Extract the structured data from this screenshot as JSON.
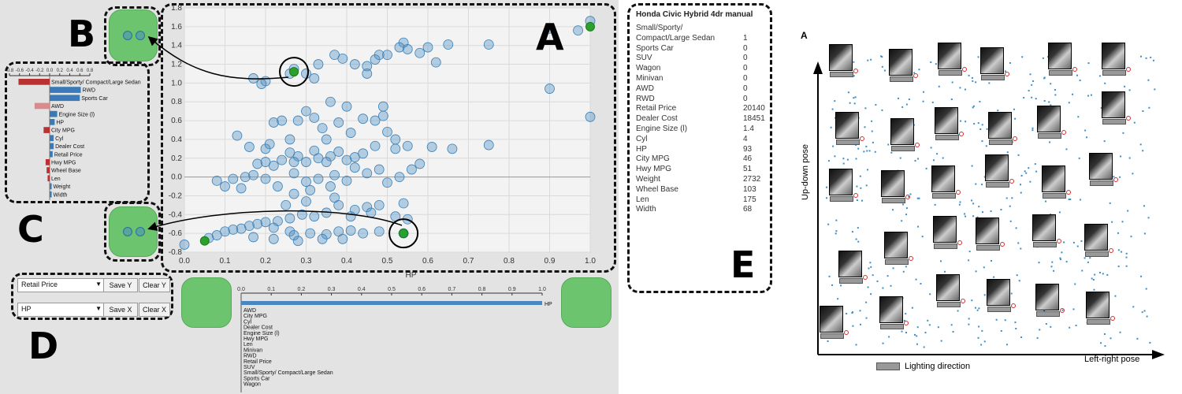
{
  "labels": {
    "a": "A",
    "b": "B",
    "c": "C",
    "d": "D",
    "e": "E"
  },
  "scatter": {
    "xlabel": "HP",
    "x_ticks": [
      "0.0",
      "0.1",
      "0.2",
      "0.3",
      "0.4",
      "0.5",
      "0.6",
      "0.7",
      "0.8",
      "0.9",
      "1.0"
    ],
    "y_ticks": [
      "1.8",
      "1.6",
      "1.4",
      "1.2",
      "1.0",
      "0.8",
      "0.6",
      "0.4",
      "0.2",
      "0.0",
      "-0.2",
      "-0.4",
      "-0.6",
      "-0.8"
    ],
    "colors": {
      "point": "#4a8ec4",
      "highlight": "#2ca02c"
    }
  },
  "chart_data": [
    {
      "type": "scatter",
      "xlabel": "HP",
      "ylabel": "",
      "xlim": [
        0.0,
        1.0
      ],
      "ylim": [
        -0.8,
        1.8
      ],
      "points": [
        [
          1.0,
          1.66
        ],
        [
          0.97,
          1.56
        ],
        [
          0.9,
          1.58
        ],
        [
          0.75,
          1.41
        ],
        [
          0.65,
          1.41
        ],
        [
          0.6,
          1.38
        ],
        [
          0.58,
          1.32
        ],
        [
          0.55,
          1.36
        ],
        [
          0.54,
          1.43
        ],
        [
          0.53,
          1.38
        ],
        [
          0.5,
          1.3
        ],
        [
          0.47,
          1.25
        ],
        [
          0.45,
          1.18
        ],
        [
          0.42,
          1.2
        ],
        [
          0.39,
          1.26
        ],
        [
          0.37,
          1.3
        ],
        [
          0.33,
          1.2
        ],
        [
          0.3,
          1.1
        ],
        [
          0.26,
          1.1
        ],
        [
          0.2,
          1.02
        ],
        [
          0.19,
          0.99
        ],
        [
          0.17,
          1.05
        ],
        [
          0.27,
          1.15
        ],
        [
          0.32,
          1.05
        ],
        [
          0.45,
          1.1
        ],
        [
          0.48,
          1.3
        ],
        [
          0.62,
          1.22
        ],
        [
          0.9,
          0.94
        ],
        [
          1.0,
          0.64
        ],
        [
          0.75,
          0.34
        ],
        [
          0.66,
          0.3
        ],
        [
          0.61,
          0.32
        ],
        [
          0.55,
          0.33
        ],
        [
          0.52,
          0.4
        ],
        [
          0.5,
          0.48
        ],
        [
          0.49,
          0.75
        ],
        [
          0.49,
          0.65
        ],
        [
          0.47,
          0.6
        ],
        [
          0.44,
          0.62
        ],
        [
          0.41,
          0.47
        ],
        [
          0.38,
          0.58
        ],
        [
          0.34,
          0.52
        ],
        [
          0.35,
          0.4
        ],
        [
          0.3,
          0.7
        ],
        [
          0.28,
          0.6
        ],
        [
          0.24,
          0.6
        ],
        [
          0.22,
          0.58
        ],
        [
          0.32,
          0.63
        ],
        [
          0.4,
          0.75
        ],
        [
          0.36,
          0.8
        ],
        [
          0.26,
          0.4
        ],
        [
          0.21,
          0.35
        ],
        [
          0.2,
          0.3
        ],
        [
          0.16,
          0.32
        ],
        [
          0.13,
          0.44
        ],
        [
          0.52,
          0.3
        ],
        [
          0.47,
          0.33
        ],
        [
          0.44,
          0.25
        ],
        [
          0.42,
          0.21
        ],
        [
          0.4,
          0.18
        ],
        [
          0.38,
          0.27
        ],
        [
          0.36,
          0.22
        ],
        [
          0.35,
          0.16
        ],
        [
          0.33,
          0.2
        ],
        [
          0.32,
          0.28
        ],
        [
          0.3,
          0.16
        ],
        [
          0.28,
          0.22
        ],
        [
          0.27,
          0.16
        ],
        [
          0.26,
          0.26
        ],
        [
          0.24,
          0.18
        ],
        [
          0.22,
          0.12
        ],
        [
          0.2,
          0.16
        ],
        [
          0.18,
          0.14
        ],
        [
          0.17,
          0.02
        ],
        [
          0.15,
          0.0
        ],
        [
          0.12,
          -0.02
        ],
        [
          0.08,
          -0.04
        ],
        [
          0.1,
          -0.1
        ],
        [
          0.14,
          -0.12
        ],
        [
          0.2,
          -0.02
        ],
        [
          0.23,
          -0.1
        ],
        [
          0.27,
          0.04
        ],
        [
          0.3,
          -0.05
        ],
        [
          0.33,
          -0.02
        ],
        [
          0.37,
          0.02
        ],
        [
          0.4,
          -0.04
        ],
        [
          0.42,
          0.1
        ],
        [
          0.45,
          0.04
        ],
        [
          0.48,
          0.08
        ],
        [
          0.5,
          -0.06
        ],
        [
          0.53,
          0.0
        ],
        [
          0.56,
          0.08
        ],
        [
          0.58,
          0.14
        ],
        [
          0.36,
          -0.1
        ],
        [
          0.31,
          -0.14
        ],
        [
          0.27,
          -0.18
        ],
        [
          0.3,
          -0.26
        ],
        [
          0.37,
          -0.22
        ],
        [
          0.25,
          -0.3
        ],
        [
          0.38,
          -0.3
        ],
        [
          0.42,
          -0.35
        ],
        [
          0.45,
          -0.32
        ],
        [
          0.48,
          -0.3
        ],
        [
          0.54,
          -0.28
        ],
        [
          0.35,
          -0.38
        ],
        [
          0.32,
          -0.42
        ],
        [
          0.29,
          -0.4
        ],
        [
          0.26,
          -0.44
        ],
        [
          0.23,
          -0.47
        ],
        [
          0.2,
          -0.48
        ],
        [
          0.18,
          -0.5
        ],
        [
          0.16,
          -0.52
        ],
        [
          0.14,
          -0.55
        ],
        [
          0.12,
          -0.56
        ],
        [
          0.1,
          -0.58
        ],
        [
          0.08,
          -0.62
        ],
        [
          0.06,
          -0.65
        ],
        [
          0.0,
          -0.72
        ],
        [
          0.22,
          -0.54
        ],
        [
          0.26,
          -0.58
        ],
        [
          0.31,
          -0.6
        ],
        [
          0.35,
          -0.61
        ],
        [
          0.38,
          -0.58
        ],
        [
          0.41,
          -0.57
        ],
        [
          0.44,
          -0.6
        ],
        [
          0.48,
          -0.58
        ],
        [
          0.28,
          -0.68
        ],
        [
          0.22,
          -0.66
        ],
        [
          0.17,
          -0.64
        ],
        [
          0.34,
          -0.66
        ],
        [
          0.39,
          -0.66
        ],
        [
          0.41,
          -0.42
        ],
        [
          0.46,
          -0.38
        ],
        [
          0.52,
          -0.42
        ],
        [
          0.55,
          -0.45
        ],
        [
          0.54,
          -0.6
        ],
        [
          0.27,
          -0.62
        ]
      ],
      "highlight": [
        [
          1.0,
          1.6
        ],
        [
          0.27,
          1.12
        ],
        [
          0.54,
          -0.6
        ],
        [
          0.05,
          -0.68
        ]
      ]
    },
    {
      "type": "bar",
      "title": "",
      "ticks": [
        "0.0",
        "0.1",
        "0.2",
        "0.3",
        "0.4",
        "0.5",
        "0.6",
        "0.7",
        "0.8",
        "0.9",
        "1.0"
      ],
      "xlim": [
        0.0,
        1.0
      ],
      "categories": [
        "HP",
        "AWD",
        "City MPG",
        "Cyl",
        "Dealer Cost",
        "Engine Size (l)",
        "Hwy MPG",
        "Len",
        "Minivan",
        "RWD",
        "Retail Price",
        "SUV",
        "Small/Sporty/ Compact/Large Sedan",
        "Sports Car",
        "Wagon"
      ],
      "values": [
        1.0,
        0,
        0,
        0,
        0,
        0,
        0,
        0,
        0,
        0,
        0,
        0,
        0,
        0,
        0
      ]
    },
    {
      "type": "bar",
      "ticks": [
        "-0.8",
        "-0.6",
        "-0.4",
        "-0.2",
        "0.0",
        "0.2",
        "0.4",
        "0.6",
        "0.8"
      ],
      "xlim": [
        -0.8,
        0.8
      ],
      "categories": [
        "Small/Sporty/ Compact/Large Sedan",
        "RWD",
        "Sports Car",
        "AWD",
        "Engine Size (l)",
        "HP",
        "City MPG",
        "Cyl",
        "Dealer Cost",
        "Retail Price",
        "Hwy MPG",
        "Wheel Base",
        "Len",
        "Weight",
        "Width"
      ],
      "values": [
        -0.62,
        0.62,
        0.6,
        -0.3,
        0.15,
        0.1,
        -0.12,
        0.08,
        0.08,
        0.06,
        -0.08,
        -0.06,
        -0.04,
        0.04,
        0.04
      ]
    }
  ],
  "controls": {
    "y_select": "Retail Price",
    "x_select": "HP",
    "save_y": "Save Y",
    "clear_y": "Clear Y",
    "save_x": "Save X",
    "clear_x": "Clear X"
  },
  "info": {
    "title": "Honda Civic Hybrid 4dr manual",
    "rows": [
      {
        "label": "Small/Sporty/",
        "value": ""
      },
      {
        "label": "Compact/Large Sedan",
        "value": "1"
      },
      {
        "label": "Sports Car",
        "value": "0"
      },
      {
        "label": "SUV",
        "value": "0"
      },
      {
        "label": "Wagon",
        "value": "0"
      },
      {
        "label": "Minivan",
        "value": "0"
      },
      {
        "label": "AWD",
        "value": "0"
      },
      {
        "label": "RWD",
        "value": "0"
      },
      {
        "label": "Retail Price",
        "value": "20140"
      },
      {
        "label": "Dealer Cost",
        "value": "18451"
      },
      {
        "label": "Engine Size (l)",
        "value": "1.4"
      },
      {
        "label": "Cyl",
        "value": "4"
      },
      {
        "label": "HP",
        "value": "93"
      },
      {
        "label": "City MPG",
        "value": "46"
      },
      {
        "label": "Hwy MPG",
        "value": "51"
      },
      {
        "label": "Weight",
        "value": "2732"
      },
      {
        "label": "Wheel Base",
        "value": "103"
      },
      {
        "label": "Len",
        "value": "175"
      },
      {
        "label": "Width",
        "value": "68"
      }
    ]
  },
  "faces": {
    "label": "A",
    "ylabel": "Up-down pose",
    "xlabel": "Left-right pose",
    "legend": "Lighting direction"
  }
}
